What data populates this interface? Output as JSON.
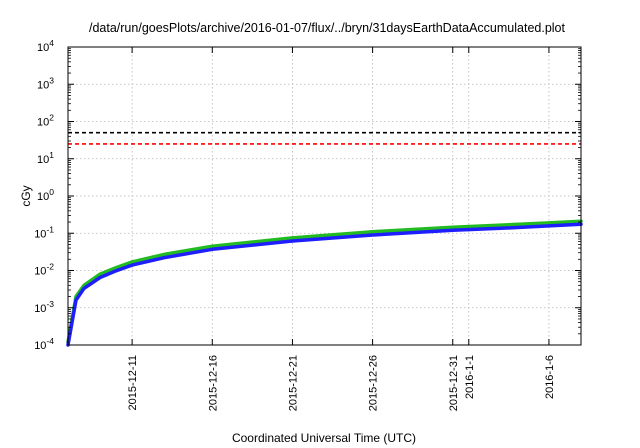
{
  "chart_data": {
    "type": "line",
    "title": "/data/run/goesPlots/archive/2016-01-07/flux/../bryn/31daysEarthDataAccumulated.plot",
    "xlabel": "Coordinated Universal Time (UTC)",
    "ylabel": "cGy",
    "yscale": "log",
    "ylim": [
      0.0001,
      10000
    ],
    "xlim": [
      "2015-12-07",
      "2016-01-08"
    ],
    "grid": true,
    "y_tick_labels": [
      {
        "base": "10",
        "exp": "-4"
      },
      {
        "base": "10",
        "exp": "-3"
      },
      {
        "base": "10",
        "exp": "-2"
      },
      {
        "base": "10",
        "exp": "-1"
      },
      {
        "base": "10",
        "exp": "0"
      },
      {
        "base": "10",
        "exp": "1"
      },
      {
        "base": "10",
        "exp": "2"
      },
      {
        "base": "10",
        "exp": "3"
      },
      {
        "base": "10",
        "exp": "4"
      }
    ],
    "x_tick_labels": [
      {
        "date": "2015-12-11",
        "text": "2015-12-11"
      },
      {
        "date": "2015-12-16",
        "text": "2015-12-16"
      },
      {
        "date": "2015-12-21",
        "text": "2015-12-21"
      },
      {
        "date": "2015-12-26",
        "text": "2015-12-26"
      },
      {
        "date": "2015-12-31",
        "text": "2015-12-31"
      },
      {
        "date": "2016-01-01",
        "text": "2016-1-1"
      },
      {
        "date": "2016-01-06",
        "text": "2016-1-6"
      }
    ],
    "reference_lines": [
      {
        "y": 50,
        "color": "#000000",
        "dash": true
      },
      {
        "y": 25,
        "color": "#ff0000",
        "dash": true
      }
    ],
    "series": [
      {
        "color": "#22bb22",
        "x": [
          "2015-12-07",
          "2015-12-07T12:00",
          "2015-12-08",
          "2015-12-09",
          "2015-12-10",
          "2015-12-11",
          "2015-12-13",
          "2015-12-16",
          "2015-12-21",
          "2015-12-26",
          "2015-12-31",
          "2016-01-03",
          "2016-01-06",
          "2016-01-08"
        ],
        "y": [
          0.00012,
          0.002,
          0.004,
          0.008,
          0.012,
          0.017,
          0.027,
          0.045,
          0.075,
          0.11,
          0.145,
          0.165,
          0.19,
          0.21
        ]
      },
      {
        "color": "#1e1eff",
        "x": [
          "2015-12-07",
          "2015-12-07T12:00",
          "2015-12-08",
          "2015-12-09",
          "2015-12-10",
          "2015-12-11",
          "2015-12-13",
          "2015-12-16",
          "2015-12-21",
          "2015-12-26",
          "2015-12-31",
          "2016-01-03",
          "2016-01-06",
          "2016-01-08"
        ],
        "y": [
          0.0001,
          0.0016,
          0.0033,
          0.0065,
          0.0098,
          0.014,
          0.022,
          0.037,
          0.062,
          0.09,
          0.12,
          0.136,
          0.158,
          0.175
        ]
      }
    ]
  }
}
